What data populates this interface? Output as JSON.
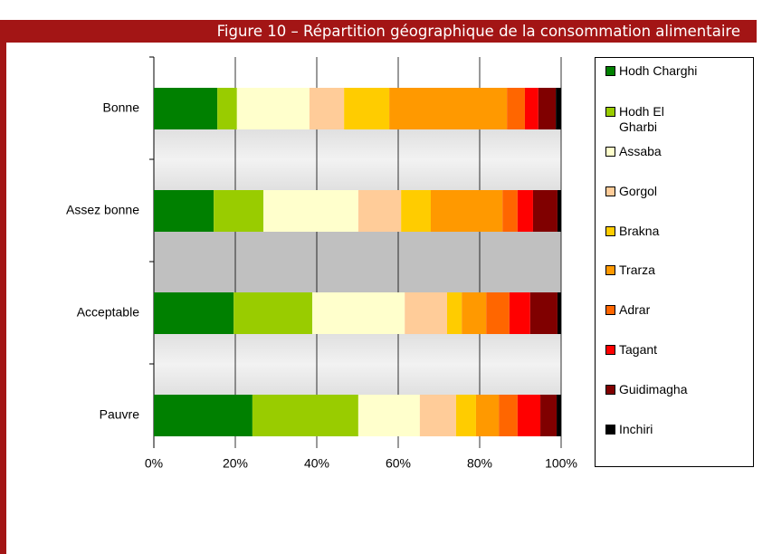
{
  "chart_data": {
    "type": "stacked_bar_horizontal",
    "title": "Figure 10 – Répartition géographique de la consommation alimentaire",
    "categories": [
      "Bonne",
      "Assez bonne",
      "Acceptable",
      "Pauvre"
    ],
    "series": [
      {
        "name": "Hodh Charghi",
        "color": "#008000",
        "values": [
          15.6,
          14.7,
          19.6,
          24.2
        ]
      },
      {
        "name": "Hodh El Gharbi",
        "color": "#99cc00",
        "values": [
          4.8,
          12.2,
          19.3,
          26.0
        ]
      },
      {
        "name": "Assaba",
        "color": "#ffffcc",
        "values": [
          17.8,
          23.3,
          22.7,
          15.1
        ]
      },
      {
        "name": "Gorgol",
        "color": "#ffcc99",
        "values": [
          8.5,
          10.5,
          10.4,
          8.9
        ]
      },
      {
        "name": "Brakna",
        "color": "#ffcc00",
        "values": [
          11.1,
          7.3,
          3.6,
          4.9
        ]
      },
      {
        "name": "Trarza",
        "color": "#ff9900",
        "values": [
          28.9,
          17.6,
          6.0,
          5.6
        ]
      },
      {
        "name": "Adrar",
        "color": "#ff6600",
        "values": [
          4.4,
          3.7,
          5.7,
          4.6
        ]
      },
      {
        "name": "Tagant",
        "color": "#ff0000",
        "values": [
          3.3,
          3.8,
          5.1,
          5.6
        ]
      },
      {
        "name": "Guidimagha",
        "color": "#800000",
        "values": [
          4.3,
          6.0,
          6.7,
          4.0
        ]
      },
      {
        "name": "Inchiri",
        "color": "#000000",
        "values": [
          1.3,
          0.9,
          0.9,
          1.1
        ]
      }
    ],
    "xlim": [
      0,
      100
    ],
    "xticks": [
      {
        "value": 0,
        "label": "0%"
      },
      {
        "value": 20,
        "label": "20%"
      },
      {
        "value": 40,
        "label": "40%"
      },
      {
        "value": 60,
        "label": "60%"
      },
      {
        "value": 80,
        "label": "80%"
      },
      {
        "value": 100,
        "label": "100%"
      }
    ],
    "grid": true,
    "legend": "right"
  }
}
